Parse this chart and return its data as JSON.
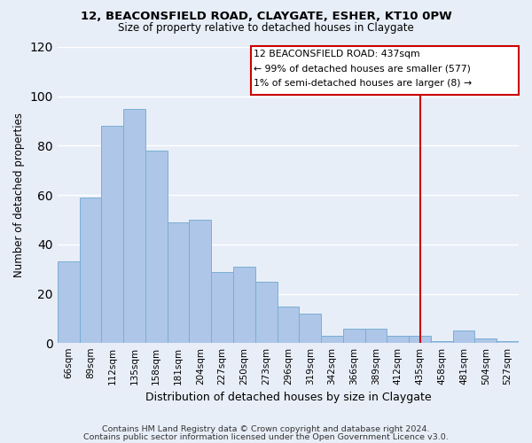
{
  "title1": "12, BEACONSFIELD ROAD, CLAYGATE, ESHER, KT10 0PW",
  "title2": "Size of property relative to detached houses in Claygate",
  "xlabel": "Distribution of detached houses by size in Claygate",
  "ylabel": "Number of detached properties",
  "categories": [
    "66sqm",
    "89sqm",
    "112sqm",
    "135sqm",
    "158sqm",
    "181sqm",
    "204sqm",
    "227sqm",
    "250sqm",
    "273sqm",
    "296sqm",
    "319sqm",
    "342sqm",
    "366sqm",
    "389sqm",
    "412sqm",
    "435sqm",
    "458sqm",
    "481sqm",
    "504sqm",
    "527sqm"
  ],
  "values": [
    33,
    59,
    88,
    95,
    78,
    49,
    50,
    29,
    31,
    25,
    15,
    12,
    3,
    6,
    6,
    3,
    3,
    1,
    5,
    2,
    1
  ],
  "bar_color": "#aec6e8",
  "bar_edge_color": "#7aafd4",
  "background_color": "#e8eef8",
  "grid_color": "#ffffff",
  "vline_index": 16,
  "vline_color": "#cc0000",
  "annotation_lines": [
    "12 BEACONSFIELD ROAD: 437sqm",
    "← 99% of detached houses are smaller (577)",
    "1% of semi-detached houses are larger (8) →"
  ],
  "annotation_box_color": "#cc0000",
  "ylim": [
    0,
    120
  ],
  "yticks": [
    0,
    20,
    40,
    60,
    80,
    100,
    120
  ],
  "footer_line1": "Contains HM Land Registry data © Crown copyright and database right 2024.",
  "footer_line2": "Contains public sector information licensed under the Open Government Licence v3.0."
}
